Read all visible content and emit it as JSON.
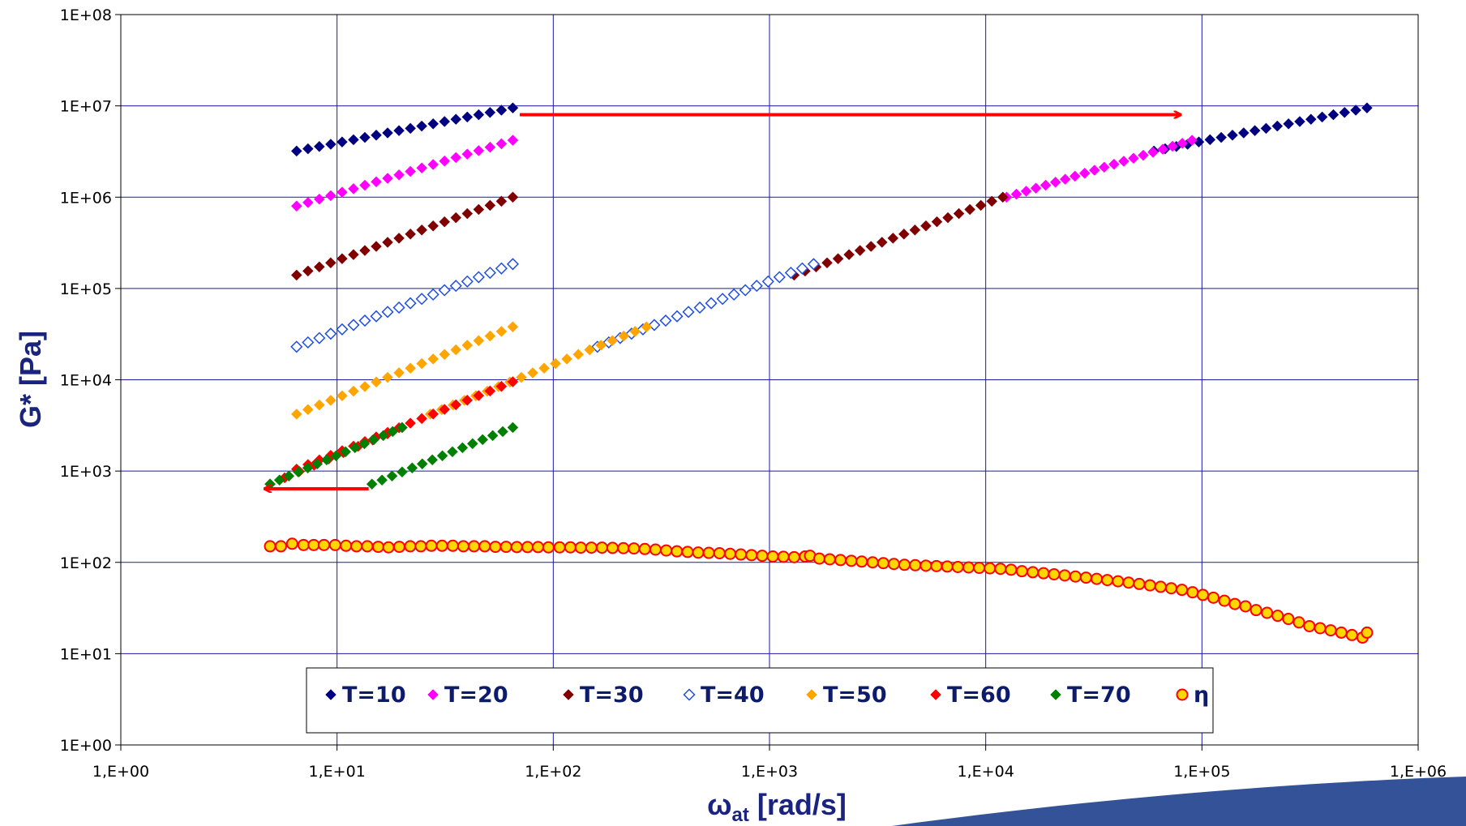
{
  "chart_data": {
    "type": "scatter",
    "xlabel_main": "ω",
    "xlabel_sub": "at",
    "xlabel_unit": " [rad/s]",
    "ylabel": "G* [Pa]",
    "x_scale": "log",
    "y_scale": "log",
    "xlim": [
      1,
      1000000
    ],
    "ylim": [
      1,
      100000000
    ],
    "grid": true,
    "legend_position": "bottom-center",
    "x_ticks": [
      {
        "value": 1,
        "label": "1,E+00"
      },
      {
        "value": 10,
        "label": "1,E+01"
      },
      {
        "value": 100,
        "label": "1,E+02"
      },
      {
        "value": 1000,
        "label": "1,E+03"
      },
      {
        "value": 10000,
        "label": "1,E+04"
      },
      {
        "value": 100000,
        "label": "1,E+05"
      },
      {
        "value": 1000000,
        "label": "1,E+06"
      }
    ],
    "y_ticks": [
      {
        "value": 1,
        "label": "1E+00"
      },
      {
        "value": 10,
        "label": "1E+01"
      },
      {
        "value": 100,
        "label": "1E+02"
      },
      {
        "value": 1000,
        "label": "1E+03"
      },
      {
        "value": 10000,
        "label": "1E+04"
      },
      {
        "value": 100000,
        "label": "1E+05"
      },
      {
        "value": 1000000,
        "label": "1E+06"
      },
      {
        "value": 10000000,
        "label": "1E+07"
      },
      {
        "value": 100000000,
        "label": "1E+08"
      }
    ],
    "series": [
      {
        "name": "T=10",
        "color": "#000080",
        "marker": "diamond",
        "segments": [
          {
            "x0": 6.5,
            "x1": 65,
            "y0": 3200000,
            "y1": 9500000,
            "n": 20
          },
          {
            "x0": 60000,
            "x1": 580000,
            "y0": 3200000,
            "y1": 9500000,
            "n": 20
          }
        ]
      },
      {
        "name": "T=20",
        "color": "#ff00ff",
        "marker": "diamond",
        "segments": [
          {
            "x0": 6.5,
            "x1": 65,
            "y0": 800000,
            "y1": 4200000,
            "n": 20
          },
          {
            "x0": 12500,
            "x1": 90000,
            "y0": 1000000,
            "y1": 4200000,
            "n": 20
          }
        ]
      },
      {
        "name": "T=30",
        "color": "#800000",
        "marker": "diamond",
        "segments": [
          {
            "x0": 6.5,
            "x1": 65,
            "y0": 140000,
            "y1": 1000000,
            "n": 20
          },
          {
            "x0": 1300,
            "x1": 12000,
            "y0": 140000,
            "y1": 1000000,
            "n": 20
          }
        ]
      },
      {
        "name": "T=40",
        "color": "#1f4fe0",
        "marker": "open-diamond",
        "segments": [
          {
            "x0": 6.5,
            "x1": 65,
            "y0": 23000,
            "y1": 185000,
            "n": 20
          },
          {
            "x0": 160,
            "x1": 1600,
            "y0": 23000,
            "y1": 185000,
            "n": 20
          }
        ]
      },
      {
        "name": "T=50",
        "color": "#ffa500",
        "marker": "diamond",
        "segments": [
          {
            "x0": 6.5,
            "x1": 65,
            "y0": 4200,
            "y1": 38000,
            "n": 20
          },
          {
            "x0": 27,
            "x1": 270,
            "y0": 4200,
            "y1": 38000,
            "n": 20
          }
        ]
      },
      {
        "name": "T=60",
        "color": "#ff0000",
        "marker": "diamond",
        "segments": [
          {
            "x0": 6.5,
            "x1": 65,
            "y0": 1050,
            "y1": 9500,
            "n": 20
          },
          {
            "x0": 4.9,
            "x1": 20,
            "y0": 720,
            "y1": 3000,
            "n": 10
          }
        ]
      },
      {
        "name": "T=70",
        "color": "#008000",
        "marker": "diamond",
        "segments": [
          {
            "x0": 14.5,
            "x1": 65,
            "y0": 720,
            "y1": 3000,
            "n": 15
          },
          {
            "x0": 4.9,
            "x1": 20,
            "y0": 720,
            "y1": 3000,
            "n": 15
          }
        ]
      },
      {
        "name": "η",
        "color": "#ff0000",
        "fill": "#ffd700",
        "marker": "circle",
        "points": [
          [
            4.9,
            150
          ],
          [
            5.5,
            150
          ],
          [
            6.2,
            160
          ],
          [
            7,
            155
          ],
          [
            7.8,
            155
          ],
          [
            8.7,
            155
          ],
          [
            9.8,
            155
          ],
          [
            11,
            152
          ],
          [
            12.3,
            150
          ],
          [
            13.8,
            150
          ],
          [
            15.5,
            148
          ],
          [
            17.3,
            146
          ],
          [
            19.4,
            148
          ],
          [
            21.8,
            150
          ],
          [
            24.4,
            150
          ],
          [
            27.3,
            152
          ],
          [
            30.6,
            152
          ],
          [
            34.3,
            152
          ],
          [
            38.4,
            150
          ],
          [
            43,
            150
          ],
          [
            48.2,
            150
          ],
          [
            54,
            148
          ],
          [
            60.5,
            148
          ],
          [
            67.8,
            147
          ],
          [
            76,
            147
          ],
          [
            85,
            147
          ],
          [
            95,
            146
          ],
          [
            107,
            146
          ],
          [
            120,
            146
          ],
          [
            134,
            145
          ],
          [
            150,
            145
          ],
          [
            168,
            145
          ],
          [
            188,
            144
          ],
          [
            211,
            143
          ],
          [
            236,
            142
          ],
          [
            265,
            140
          ],
          [
            297,
            138
          ],
          [
            333,
            135
          ],
          [
            373,
            132
          ],
          [
            418,
            130
          ],
          [
            468,
            128
          ],
          [
            524,
            127
          ],
          [
            587,
            126
          ],
          [
            658,
            124
          ],
          [
            737,
            122
          ],
          [
            826,
            120
          ],
          [
            925,
            118
          ],
          [
            1036,
            116
          ],
          [
            1160,
            115
          ],
          [
            1300,
            114
          ],
          [
            1460,
            116
          ],
          [
            1540,
            118
          ],
          [
            1700,
            110
          ],
          [
            1900,
            108
          ],
          [
            2130,
            106
          ],
          [
            2390,
            104
          ],
          [
            2670,
            102
          ],
          [
            3000,
            100
          ],
          [
            3360,
            98
          ],
          [
            3760,
            96
          ],
          [
            4210,
            94
          ],
          [
            4720,
            93
          ],
          [
            5290,
            92
          ],
          [
            5920,
            91
          ],
          [
            6640,
            90
          ],
          [
            7430,
            89
          ],
          [
            8330,
            88
          ],
          [
            9330,
            87
          ],
          [
            10450,
            86
          ],
          [
            11700,
            85
          ],
          [
            13100,
            83
          ],
          [
            14700,
            80
          ],
          [
            16500,
            78
          ],
          [
            18500,
            76
          ],
          [
            20700,
            74
          ],
          [
            23200,
            72
          ],
          [
            26000,
            70
          ],
          [
            29100,
            68
          ],
          [
            32600,
            66
          ],
          [
            36500,
            64
          ],
          [
            40900,
            62
          ],
          [
            45800,
            60
          ],
          [
            51300,
            58
          ],
          [
            57500,
            56
          ],
          [
            64400,
            54
          ],
          [
            72100,
            52
          ],
          [
            80800,
            50
          ],
          [
            90500,
            47
          ],
          [
            101000,
            44
          ],
          [
            113000,
            41
          ],
          [
            127000,
            38
          ],
          [
            142000,
            35
          ],
          [
            159000,
            33
          ],
          [
            178000,
            30
          ],
          [
            200000,
            28
          ],
          [
            224000,
            26
          ],
          [
            251000,
            24
          ],
          [
            281000,
            22
          ],
          [
            314000,
            20
          ],
          [
            352000,
            19
          ],
          [
            394000,
            18
          ],
          [
            441000,
            17
          ],
          [
            494000,
            16
          ],
          [
            553000,
            15
          ],
          [
            580000,
            17
          ]
        ]
      }
    ],
    "annotations": [
      {
        "type": "arrow",
        "color": "#ff0000",
        "from": [
          70,
          8000000
        ],
        "to": [
          80000,
          8000000
        ]
      },
      {
        "type": "arrow",
        "color": "#ff0000",
        "from": [
          14,
          640
        ],
        "to": [
          4.6,
          640
        ]
      }
    ]
  }
}
